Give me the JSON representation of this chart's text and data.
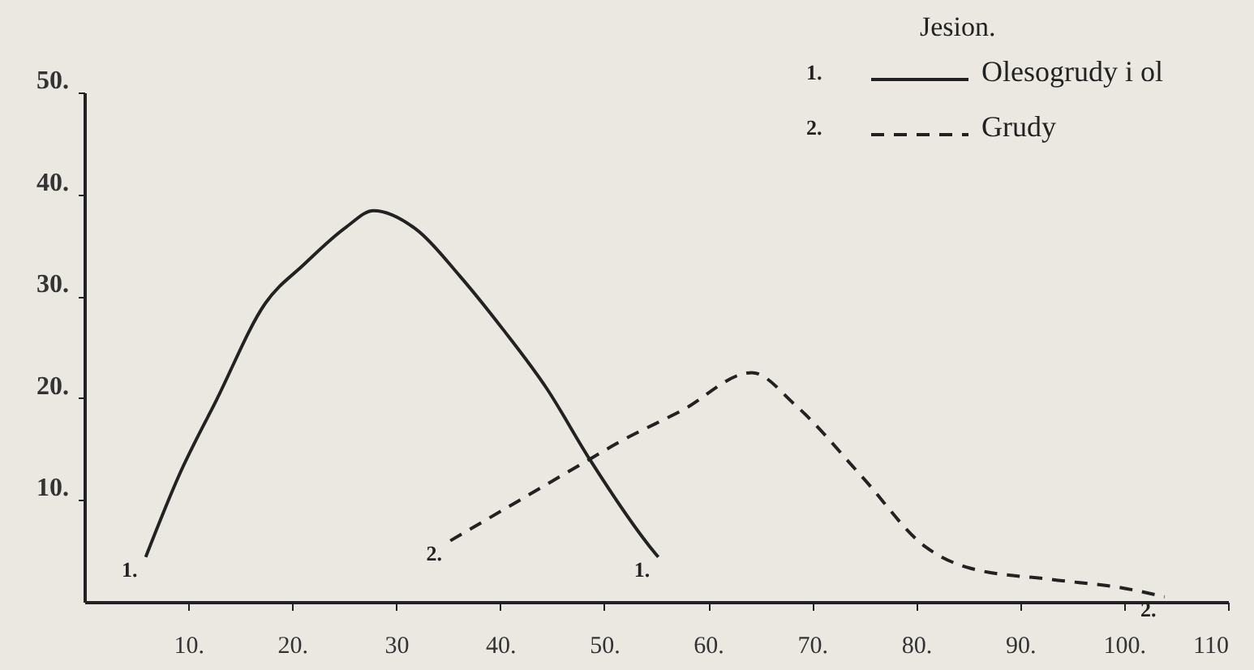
{
  "chart_data": {
    "type": "line",
    "legend_title": "Jesion.",
    "legend": "top right",
    "grid": false,
    "marker": "none",
    "xlim": [
      0,
      110
    ],
    "ylim": [
      0,
      50
    ],
    "xticks": [
      {
        "value": 10,
        "label": "10."
      },
      {
        "value": 20,
        "label": "20."
      },
      {
        "value": 30,
        "label": "30"
      },
      {
        "value": 40,
        "label": "40."
      },
      {
        "value": 50,
        "label": "50."
      },
      {
        "value": 60,
        "label": "60."
      },
      {
        "value": 70,
        "label": "70."
      },
      {
        "value": 80,
        "label": "80."
      },
      {
        "value": 90,
        "label": "90."
      },
      {
        "value": 100,
        "label": "100."
      },
      {
        "value": 110,
        "label": "110"
      }
    ],
    "yticks": [
      {
        "value": 10,
        "label": "10."
      },
      {
        "value": 20,
        "label": "20."
      },
      {
        "value": 30,
        "label": "30."
      },
      {
        "value": 40,
        "label": "40."
      },
      {
        "value": 50,
        "label": "50."
      }
    ],
    "series": [
      {
        "name": "Olesogrudy i ol",
        "color": "#222222",
        "line_style": "solid",
        "x": [
          5.9,
          9.1,
          12.7,
          17.4,
          21.1,
          25.2,
          27.8,
          32,
          36.1,
          40.3,
          44.5,
          48.6,
          54.4,
          55.2
        ],
        "values": [
          4.4,
          12.4,
          19.8,
          29.3,
          33.1,
          36.8,
          38.4,
          36.5,
          32,
          26.7,
          20.9,
          14,
          5.4,
          4.4
        ]
      },
      {
        "name": "Grudy",
        "color": "#222222",
        "line_style": "dashed",
        "x": [
          35.2,
          41.4,
          48.6,
          51.3,
          57.5,
          64.2,
          68.4,
          74.7,
          80.9,
          85.2,
          93,
          100.2,
          103.9
        ],
        "values": [
          6,
          9.7,
          14,
          15.6,
          18.8,
          22.5,
          19.3,
          12.4,
          5.4,
          3.3,
          2.2,
          1.3,
          0.5
        ]
      }
    ],
    "annotations": [
      {
        "text": "1.",
        "x": 5.9,
        "y": 4.4
      },
      {
        "text": "1.",
        "x": 55.2,
        "y": 4.4
      },
      {
        "text": "2.",
        "x": 35.2,
        "y": 6
      },
      {
        "text": "2.",
        "x": 103.9,
        "y": 0.5
      },
      "1.",
      "2."
    ]
  }
}
